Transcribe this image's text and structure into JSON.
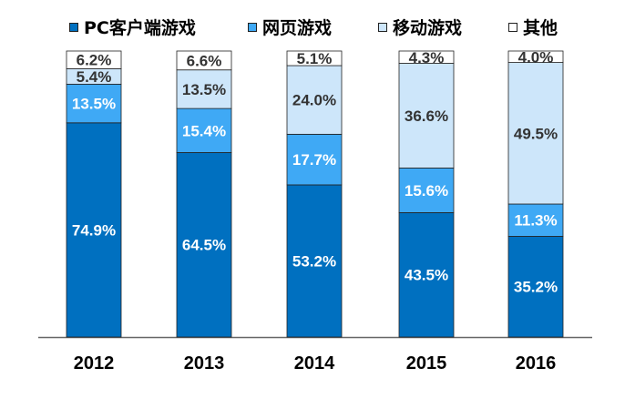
{
  "chart_data": {
    "type": "bar",
    "stacked": true,
    "percent": true,
    "categories": [
      "2012",
      "2013",
      "2014",
      "2015",
      "2016"
    ],
    "series": [
      {
        "name": "PC客户端游戏",
        "color": "#0070C0",
        "label_color": "#ffffff",
        "values": [
          74.9,
          64.5,
          53.2,
          43.5,
          35.2
        ],
        "labels": [
          "74.9%",
          "64.5%",
          "53.2%",
          "43.5%",
          "35.2%"
        ]
      },
      {
        "name": "网页游戏",
        "color": "#3FA9F5",
        "label_color": "#ffffff",
        "values": [
          13.5,
          15.4,
          17.7,
          15.6,
          11.3
        ],
        "labels": [
          "13.5%",
          "15.4%",
          "17.7%",
          "15.6%",
          "11.3%"
        ]
      },
      {
        "name": "移动游戏",
        "color": "#CDE6FA",
        "label_color": "#333333",
        "values": [
          5.4,
          13.5,
          24.0,
          36.6,
          49.5
        ],
        "labels": [
          "5.4%",
          "13.5%",
          "24.0%",
          "36.6%",
          "49.5%"
        ]
      },
      {
        "name": "其他",
        "color": "#FFFFFF",
        "label_color": "#333333",
        "values": [
          6.2,
          6.6,
          5.1,
          4.3,
          4.0
        ],
        "labels": [
          "6.2%",
          "6.6%",
          "5.1%",
          "4.3%",
          "4.0%"
        ]
      }
    ],
    "ylim": [
      0,
      100
    ],
    "legend_position": "top",
    "grid": false
  }
}
